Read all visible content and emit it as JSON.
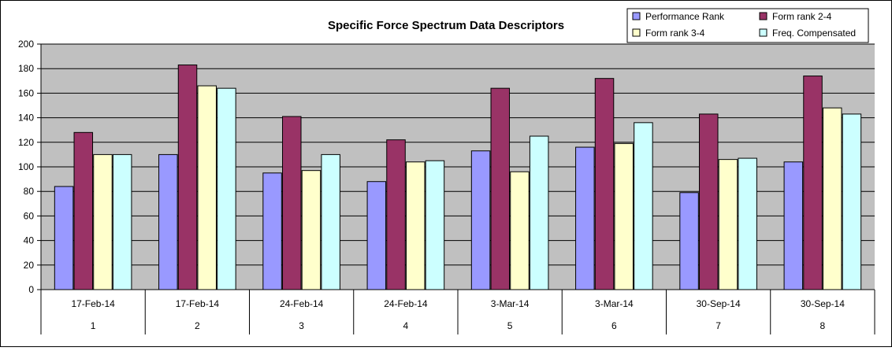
{
  "chart_data": {
    "type": "bar",
    "title": "Specific Force Spectrum Data Descriptors",
    "xlabel": "",
    "ylabel": "",
    "ylim": [
      0,
      200
    ],
    "ytick_step": 20,
    "grid": true,
    "legend_position": "top-right",
    "categories": [
      {
        "date": "17-Feb-14",
        "index": "1"
      },
      {
        "date": "17-Feb-14",
        "index": "2"
      },
      {
        "date": "24-Feb-14",
        "index": "3"
      },
      {
        "date": "24-Feb-14",
        "index": "4"
      },
      {
        "date": "3-Mar-14",
        "index": "5"
      },
      {
        "date": "3-Mar-14",
        "index": "6"
      },
      {
        "date": "30-Sep-14",
        "index": "7"
      },
      {
        "date": "30-Sep-14",
        "index": "8"
      }
    ],
    "series": [
      {
        "name": "Performance Rank",
        "color": "#9999FF",
        "values": [
          84,
          110,
          95,
          88,
          113,
          116,
          79,
          104
        ]
      },
      {
        "name": "Form rank 2-4",
        "color": "#993366",
        "values": [
          128,
          183,
          141,
          122,
          164,
          172,
          143,
          174
        ]
      },
      {
        "name": "Form rank 3-4",
        "color": "#FFFFCC",
        "values": [
          110,
          166,
          97,
          104,
          96,
          119,
          106,
          148
        ]
      },
      {
        "name": "Freq. Compensated",
        "color": "#CCFFFF",
        "values": [
          110,
          164,
          110,
          105,
          125,
          136,
          107,
          143
        ]
      }
    ],
    "plot_background": "#C0C0C0"
  }
}
